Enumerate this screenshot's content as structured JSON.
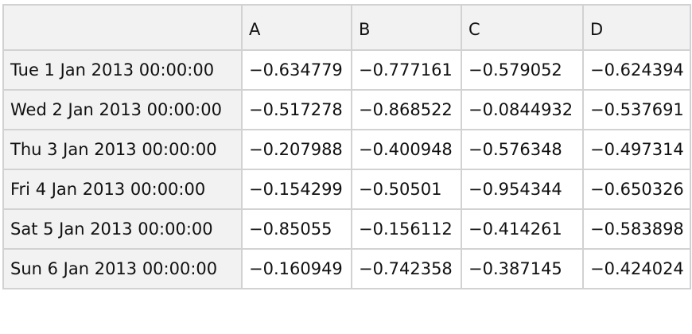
{
  "table": {
    "columns": [
      "A",
      "B",
      "C",
      "D"
    ],
    "rows": [
      {
        "label": "Tue 1 Jan 2013 00:00:00",
        "values": [
          "−0.634779",
          "−0.777161",
          "−0.579052",
          "−0.624394"
        ]
      },
      {
        "label": "Wed 2 Jan 2013 00:00:00",
        "values": [
          "−0.517278",
          "−0.868522",
          "−0.0844932",
          "−0.537691"
        ]
      },
      {
        "label": "Thu 3 Jan 2013 00:00:00",
        "values": [
          "−0.207988",
          "−0.400948",
          "−0.576348",
          "−0.497314"
        ]
      },
      {
        "label": "Fri 4 Jan 2013 00:00:00",
        "values": [
          "−0.154299",
          "−0.50501",
          "−0.954344",
          "−0.650326"
        ]
      },
      {
        "label": "Sat 5 Jan 2013 00:00:00",
        "values": [
          "−0.85055",
          "−0.156112",
          "−0.414261",
          "−0.583898"
        ]
      },
      {
        "label": "Sun 6 Jan 2013 00:00:00",
        "values": [
          "−0.160949",
          "−0.742358",
          "−0.387145",
          "−0.424024"
        ]
      }
    ]
  }
}
